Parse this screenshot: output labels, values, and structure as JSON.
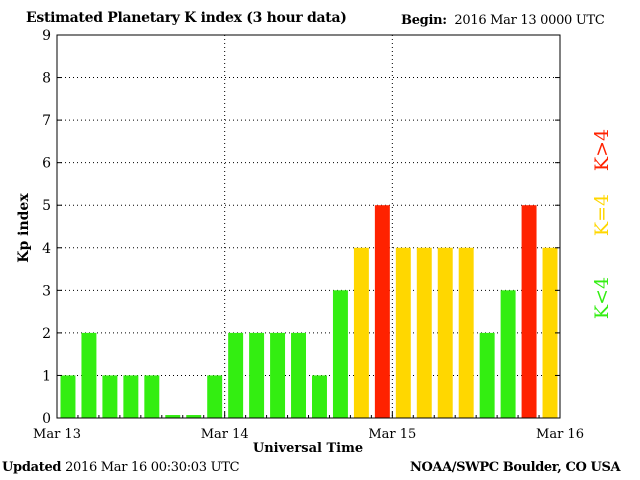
{
  "title": "Estimated Planetary K index (3 hour data)",
  "begin_label": "Begin:",
  "begin_value": "2016 Mar 13 0000 UTC",
  "updated_label": "Updated",
  "updated_value": "2016 Mar 16 00:30:03 UTC",
  "credit": "NOAA/SWPC Boulder, CO USA",
  "legend": [
    {
      "label": "K<4",
      "color": "#33ee11"
    },
    {
      "label": "K=4",
      "color": "#ffd700"
    },
    {
      "label": "K>4",
      "color": "#ff2200"
    }
  ],
  "chart_data": {
    "type": "bar",
    "title": "Estimated Planetary K index (3 hour data)",
    "xlabel": "Universal Time",
    "ylabel": "Kp index",
    "ylim": [
      0,
      9
    ],
    "yticks": [
      0,
      1,
      2,
      3,
      4,
      5,
      6,
      7,
      8,
      9
    ],
    "xtick_labels": [
      "Mar 13",
      "Mar 14",
      "Mar 15",
      "Mar 16"
    ],
    "bars_per_day": 8,
    "grid": true,
    "values": [
      1,
      2,
      1,
      1,
      1,
      0.07,
      0.07,
      1,
      2,
      2,
      2,
      2,
      1,
      3,
      4,
      5,
      4,
      4,
      4,
      4,
      2,
      3,
      5,
      4
    ],
    "colors": {
      "low": "#33ee11",
      "storm_threshold": "#ffd700",
      "high": "#ff2200"
    }
  }
}
